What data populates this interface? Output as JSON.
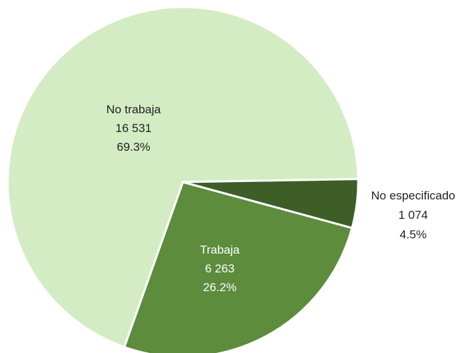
{
  "chart_data": {
    "type": "pie",
    "slices": [
      {
        "category": "No trabaja",
        "value": "16 531",
        "percent": "69.3%",
        "share": 0.693,
        "color": "#d3ecc4",
        "label_color": "#222222"
      },
      {
        "category": "Trabaja",
        "value": "6 263",
        "percent": "26.2%",
        "share": 0.262,
        "color": "#5c8c3c",
        "label_color": "#ffffff"
      },
      {
        "category": "No especificado",
        "value": "1 074",
        "percent": "4.5%",
        "share": 0.045,
        "color": "#3d5e27",
        "label_color": "#222222"
      }
    ]
  }
}
